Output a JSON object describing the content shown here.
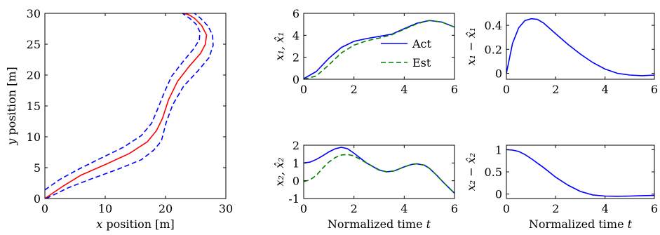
{
  "chart_data": [
    {
      "id": "path",
      "type": "line",
      "xlabel_italic": "x",
      "xlabel_rest": " position [m]",
      "ylabel_italic": "y",
      "ylabel_rest": " position [m]",
      "xlim": [
        0,
        30
      ],
      "ylim": [
        0,
        30
      ],
      "xticks": [
        0,
        10,
        20,
        30
      ],
      "yticks": [
        0,
        5,
        10,
        15,
        20,
        25,
        30
      ],
      "legend": null,
      "series": [
        {
          "style": "solid",
          "color": "#ff0000",
          "x": [
            0,
            3,
            6,
            10,
            14,
            17,
            18.5,
            19.5,
            20.5,
            22,
            24,
            25.8,
            26.6,
            26.8,
            26,
            24.8,
            23.8,
            23
          ],
          "y": [
            0,
            2,
            3.8,
            5.5,
            7.3,
            9.2,
            11,
            13,
            16,
            19,
            21.5,
            23.5,
            25,
            26.5,
            28,
            29.2,
            29.8,
            30
          ]
        },
        {
          "style": "dashed",
          "color": "#0000ff",
          "x": [
            0.2,
            4,
            8,
            12,
            16,
            18,
            19.3,
            20.1,
            21.2,
            23,
            25.3,
            27.2,
            27.9,
            27.8,
            27,
            25.8,
            24.8
          ],
          "y": [
            0,
            1.8,
            3.3,
            4.7,
            6.3,
            7.8,
            9.3,
            12.3,
            15.2,
            18.2,
            20.6,
            22.8,
            24.8,
            26.5,
            28,
            29.2,
            30
          ]
        },
        {
          "style": "dashed",
          "color": "#0000ff",
          "x": [
            0,
            2.5,
            5.5,
            9,
            13,
            16,
            17.7,
            18.7,
            19.8,
            21,
            23,
            24.7,
            25.6,
            25.7,
            25.1,
            24,
            22.8
          ],
          "y": [
            1.4,
            3.1,
            4.7,
            6.4,
            8.3,
            10.2,
            12.2,
            14.5,
            17.2,
            19.8,
            22.3,
            24.3,
            25.7,
            27,
            28.2,
            29.2,
            30
          ]
        }
      ]
    },
    {
      "id": "x1",
      "type": "line",
      "ylabel": "x₁, x̂₁",
      "xlabel": "",
      "xlim": [
        0,
        6
      ],
      "ylim": [
        0,
        6
      ],
      "xticks": [
        0,
        2,
        4,
        6
      ],
      "yticks": [
        0,
        2,
        4,
        6
      ],
      "legend": {
        "position": "right",
        "entries": [
          "Act",
          "Est"
        ]
      },
      "series": [
        {
          "name": "Act",
          "style": "solid",
          "color": "#0000ff",
          "x": [
            0,
            0.5,
            1,
            1.5,
            2,
            2.5,
            3,
            3.5,
            4,
            4.5,
            5,
            5.5,
            6
          ],
          "y": [
            0.05,
            0.7,
            1.9,
            2.9,
            3.45,
            3.7,
            3.9,
            4.1,
            4.6,
            5.1,
            5.35,
            5.2,
            4.75
          ]
        },
        {
          "name": "Est",
          "style": "dashed",
          "color": "#008000",
          "x": [
            0,
            0.5,
            1,
            1.5,
            2,
            2.5,
            3,
            3.5,
            4,
            4.5,
            5,
            5.5,
            6
          ],
          "y": [
            0,
            0.3,
            1.3,
            2.4,
            3.1,
            3.5,
            3.75,
            4.05,
            4.55,
            5.05,
            5.35,
            5.2,
            4.75
          ]
        }
      ]
    },
    {
      "id": "e1",
      "type": "line",
      "ylabel": "x₁ − x̂₁",
      "xlabel": "",
      "xlim": [
        0,
        6
      ],
      "ylim": [
        -0.05,
        0.5
      ],
      "xticks": [
        0,
        2,
        4,
        6
      ],
      "yticks": [
        0,
        0.2,
        0.4
      ],
      "legend": null,
      "series": [
        {
          "style": "solid",
          "color": "#0000ff",
          "x": [
            0,
            0.25,
            0.5,
            0.75,
            1,
            1.25,
            1.5,
            2,
            2.5,
            3,
            3.5,
            4,
            4.5,
            5,
            5.5,
            6
          ],
          "y": [
            0,
            0.25,
            0.38,
            0.44,
            0.455,
            0.45,
            0.42,
            0.33,
            0.24,
            0.16,
            0.09,
            0.035,
            0.0,
            -0.015,
            -0.02,
            -0.015
          ]
        }
      ]
    },
    {
      "id": "x2",
      "type": "line",
      "ylabel": "x₂, x̂₂",
      "xlabel_rest": "Normalized time ",
      "xlabel_italic": "t",
      "xlim": [
        0,
        6
      ],
      "ylim": [
        -1,
        2
      ],
      "xticks": [
        0,
        2,
        4,
        6
      ],
      "yticks": [
        -1,
        0,
        1,
        2
      ],
      "legend": null,
      "series": [
        {
          "name": "Act",
          "style": "solid",
          "color": "#0000ff",
          "x": [
            0,
            0.25,
            0.5,
            0.75,
            1,
            1.25,
            1.5,
            1.75,
            2,
            2.5,
            3,
            3.3,
            3.6,
            4,
            4.3,
            4.5,
            4.8,
            5,
            5.3,
            5.6,
            6
          ],
          "y": [
            1,
            1.05,
            1.2,
            1.4,
            1.62,
            1.8,
            1.88,
            1.8,
            1.55,
            1.0,
            0.6,
            0.5,
            0.55,
            0.78,
            0.92,
            0.95,
            0.88,
            0.7,
            0.3,
            -0.15,
            -0.7
          ]
        },
        {
          "name": "Est",
          "style": "dashed",
          "color": "#008000",
          "x": [
            0,
            0.25,
            0.5,
            0.75,
            1,
            1.25,
            1.5,
            1.75,
            2,
            2.5,
            3,
            3.3,
            3.6,
            4,
            4.3,
            4.5,
            4.8,
            5,
            5.3,
            5.6,
            6
          ],
          "y": [
            -0.05,
            0.05,
            0.3,
            0.7,
            1.05,
            1.3,
            1.45,
            1.48,
            1.4,
            1.0,
            0.62,
            0.5,
            0.55,
            0.78,
            0.93,
            0.95,
            0.88,
            0.7,
            0.3,
            -0.15,
            -0.7
          ]
        }
      ]
    },
    {
      "id": "e2",
      "type": "line",
      "ylabel": "x₂ − x̂₂",
      "xlabel_rest": "Normalized time ",
      "xlabel_italic": "t",
      "xlim": [
        0,
        6
      ],
      "ylim": [
        -0.1,
        1.1
      ],
      "xticks": [
        0,
        2,
        4,
        6
      ],
      "yticks": [
        0,
        0.5,
        1
      ],
      "legend": null,
      "series": [
        {
          "style": "solid",
          "color": "#0000ff",
          "x": [
            0,
            0.25,
            0.5,
            0.75,
            1,
            1.5,
            2,
            2.5,
            3,
            3.5,
            4,
            4.5,
            5,
            5.5,
            6
          ],
          "y": [
            1,
            0.99,
            0.96,
            0.89,
            0.8,
            0.6,
            0.38,
            0.2,
            0.06,
            -0.02,
            -0.045,
            -0.05,
            -0.045,
            -0.035,
            -0.03
          ]
        }
      ]
    }
  ]
}
